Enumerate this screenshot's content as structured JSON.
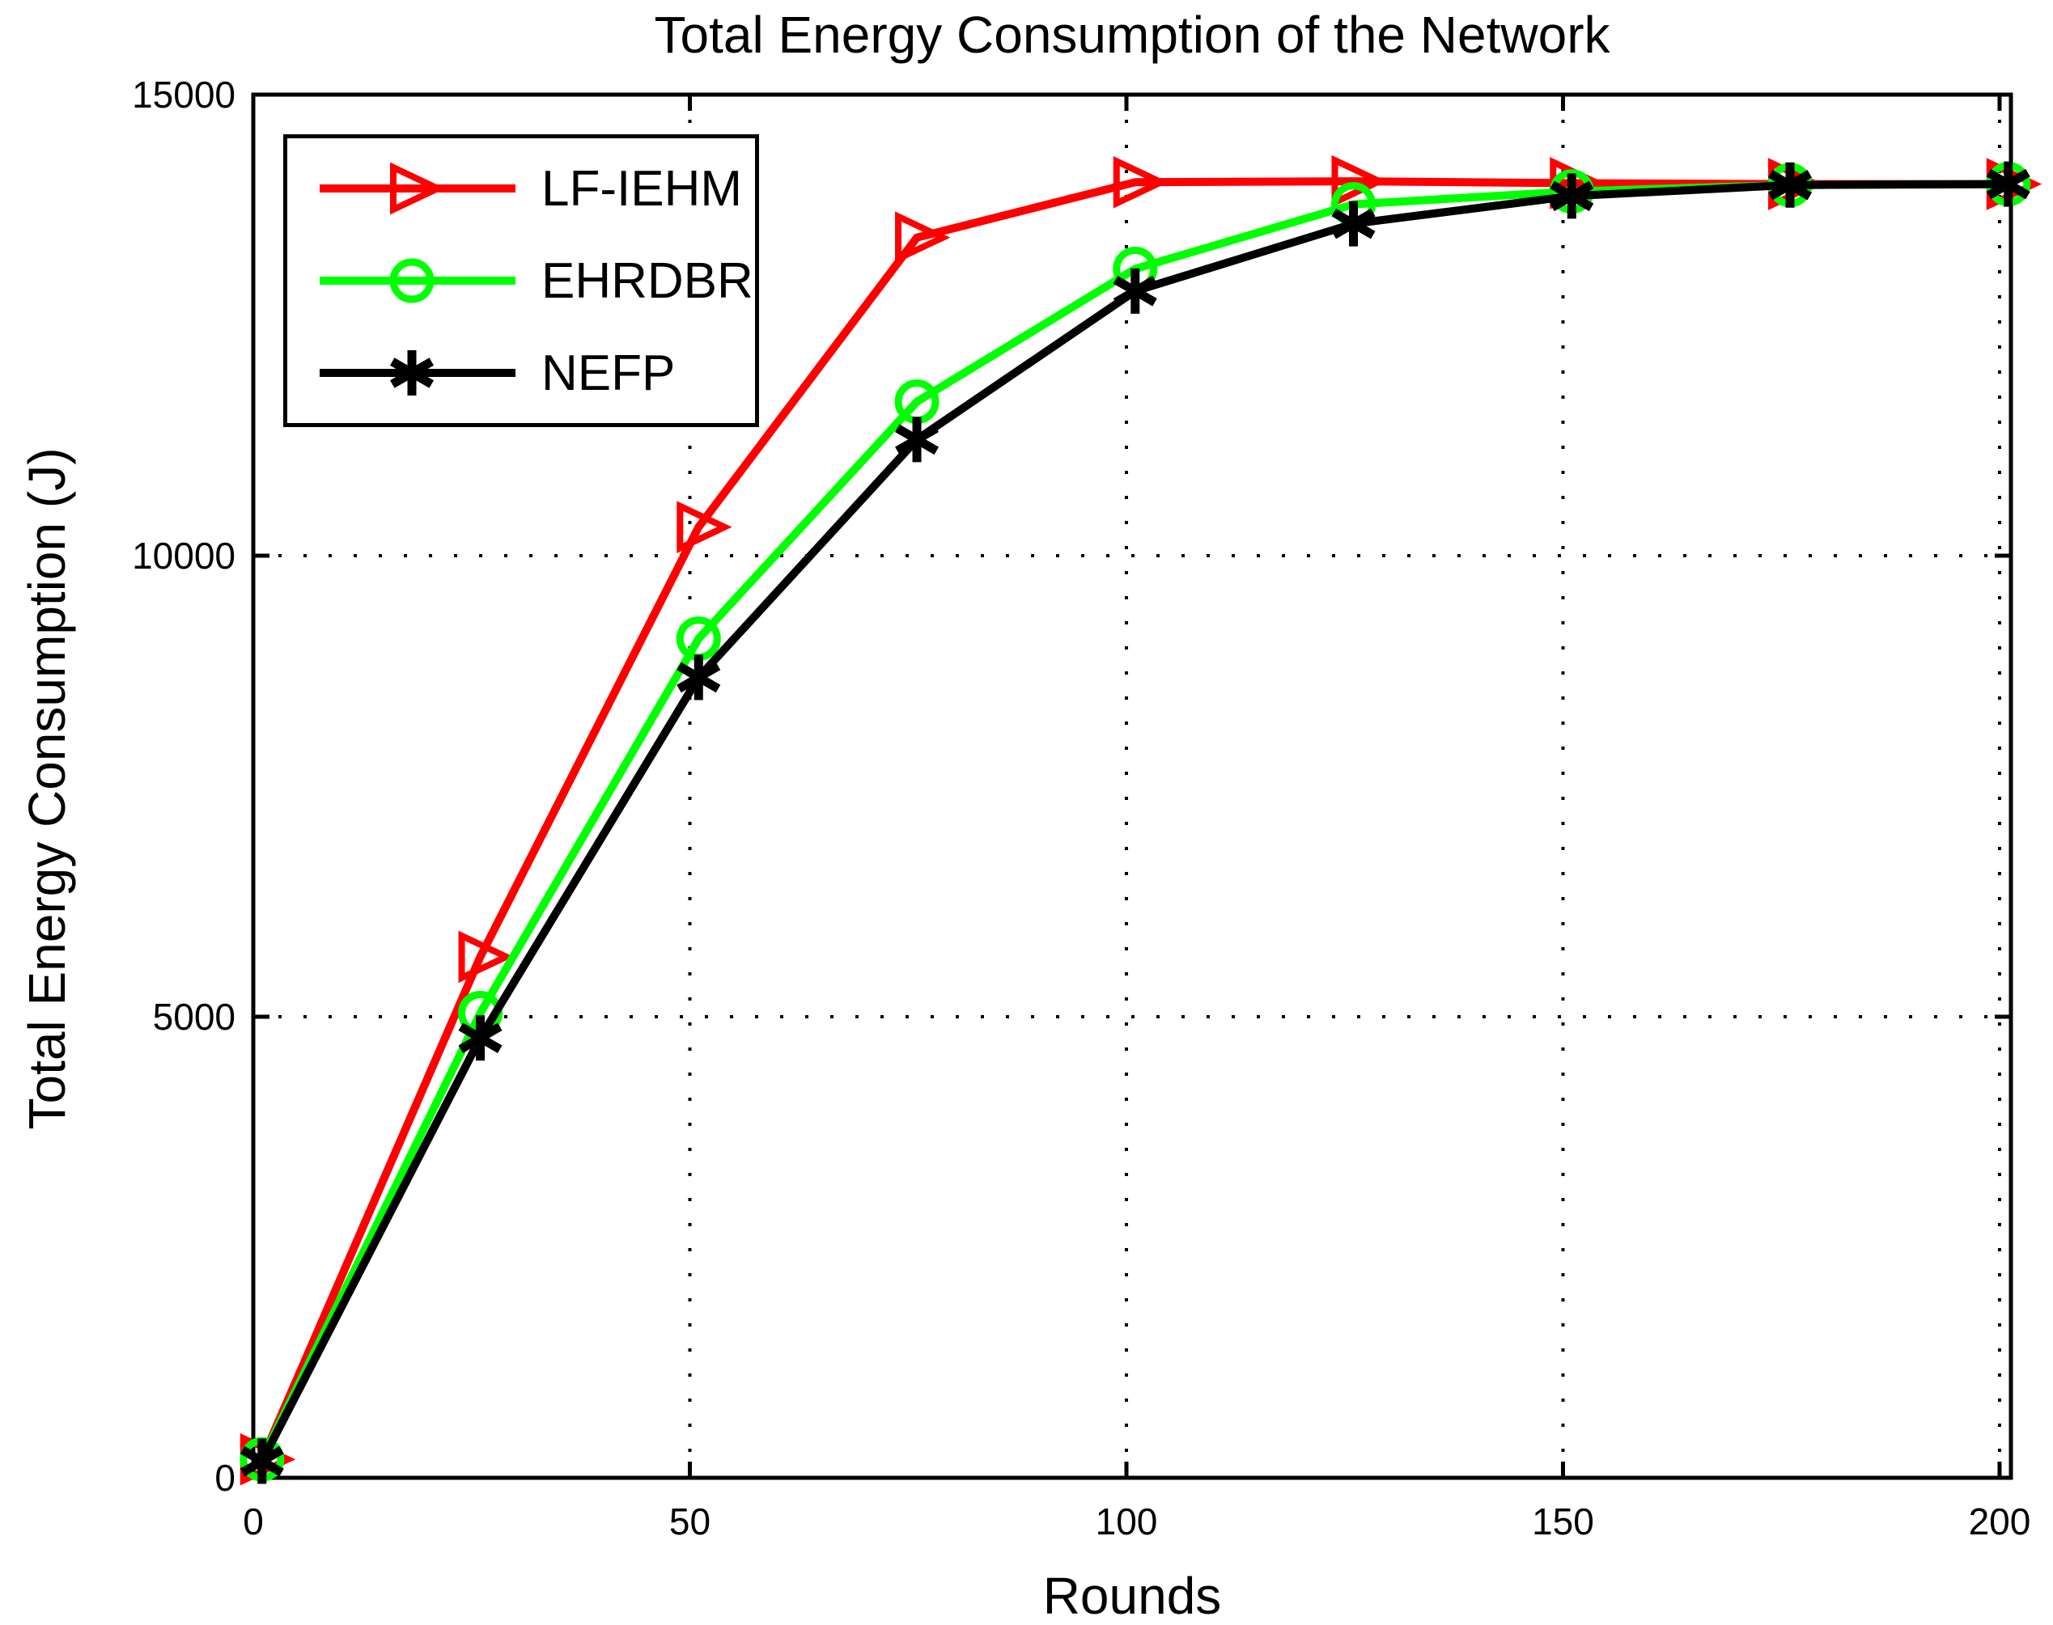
{
  "chart_data": {
    "type": "line",
    "title": "Total Energy Consumption of the Network",
    "xlabel": "Rounds",
    "ylabel": "Total Energy Consumption (J)",
    "xlim": [
      0,
      201.3
    ],
    "ylim": [
      0,
      15000
    ],
    "x_ticks": [
      0,
      50,
      100,
      150,
      200
    ],
    "y_ticks": [
      0,
      5000,
      10000,
      15000
    ],
    "grid": "dotted",
    "grid_color": "#000000",
    "axis_color": "#000000",
    "legend_position": "top-left-inside",
    "x": [
      1,
      26,
      51,
      76,
      101,
      126,
      151,
      176,
      201
    ],
    "series": [
      {
        "name": "LF-IEHM",
        "color": "#ff0000",
        "marker": "right-triangle",
        "values": [
          200,
          5650,
          10310,
          13450,
          14050,
          14060,
          14040,
          14030,
          14030
        ]
      },
      {
        "name": "EHRDBR",
        "color": "#00ff00",
        "marker": "circle",
        "values": [
          200,
          5040,
          9100,
          11670,
          13110,
          13810,
          13950,
          14020,
          14030
        ]
      },
      {
        "name": "NEFP",
        "color": "#000000",
        "marker": "asterisk",
        "values": [
          180,
          4770,
          8680,
          11260,
          12870,
          13600,
          13900,
          14020,
          14030
        ]
      }
    ]
  }
}
